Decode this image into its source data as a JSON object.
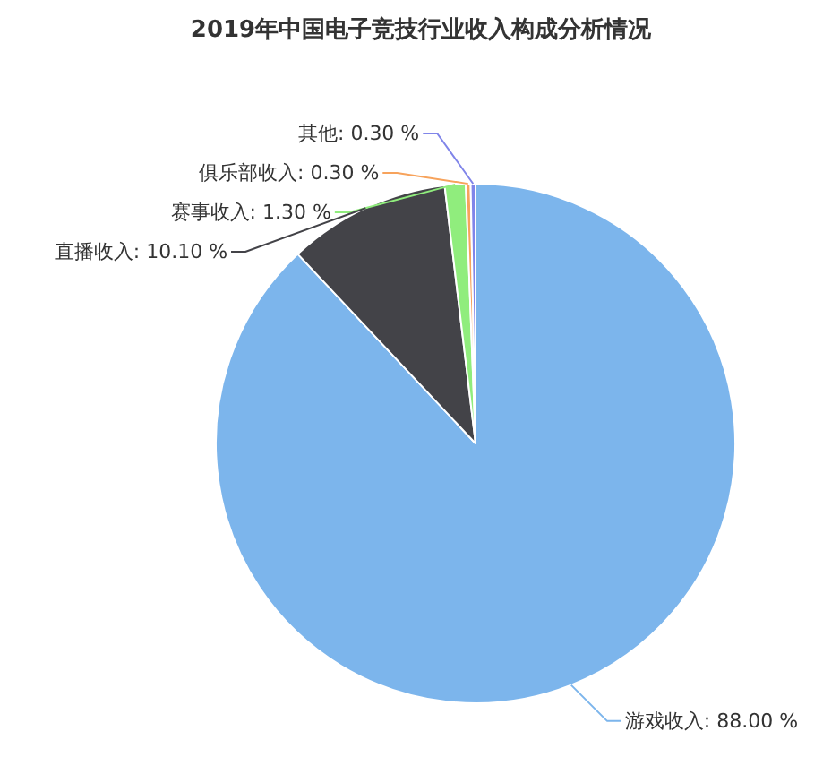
{
  "chart_data": {
    "type": "pie",
    "title": "2019年中国电子竞技行业收入构成分析情况",
    "categories": [
      "游戏收入",
      "直播收入",
      "赛事收入",
      "俱乐部收入",
      "其他"
    ],
    "values": [
      88.0,
      10.1,
      1.3,
      0.3,
      0.3
    ],
    "colors": [
      "#7cb5ec",
      "#434348",
      "#90ed7d",
      "#f7a35c",
      "#8085e9"
    ],
    "value_labels": [
      "88.00 %",
      "10.10 %",
      "1.30 %",
      "0.30 %",
      "0.30 %"
    ],
    "legend": false
  }
}
